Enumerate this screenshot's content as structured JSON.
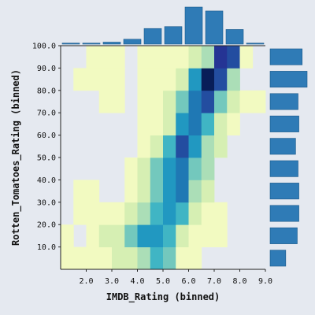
{
  "chart_data": {
    "type": "heatmap",
    "xlabel": "IMDB_Rating (binned)",
    "ylabel": "Rotten_Tomatoes_Rating (binned)",
    "x_bin_start": 1.0,
    "x_bin_width": 1.0,
    "y_bin_start": 0.0,
    "y_bin_width": 10.0,
    "xlim": [
      1.0,
      9.0
    ],
    "ylim": [
      0.0,
      100.0
    ],
    "x_ticks": [
      "2.0",
      "3.0",
      "4.0",
      "5.0",
      "6.0",
      "7.0",
      "8.0",
      "9.0"
    ],
    "y_ticks": [
      "10.0",
      "20.0",
      "30.0",
      "40.0",
      "50.0",
      "60.0",
      "70.0",
      "80.0",
      "90.0",
      "100.0"
    ],
    "x_bin_centers": [
      1.25,
      1.75,
      2.25,
      2.75,
      3.25,
      3.75,
      4.25,
      4.75,
      5.25,
      5.75,
      6.25,
      6.75,
      7.25,
      7.75,
      8.25,
      8.75
    ],
    "y_bin_centers": [
      5,
      15,
      25,
      35,
      45,
      55,
      65,
      75,
      85,
      95
    ],
    "intensity_scale": "0 = empty, 10 = darkest",
    "color_scale": [
      "#ffffd9",
      "#f2fac1",
      "#d6efb3",
      "#abdeb7",
      "#73c8bd",
      "#40b5c4",
      "#2198c1",
      "#1f78b4",
      "#234da0",
      "#253494",
      "#081d58"
    ],
    "matrix": [
      [
        1,
        1,
        1,
        1,
        2,
        2,
        3,
        5,
        4,
        1,
        1,
        0,
        0,
        0,
        0,
        0
      ],
      [
        1,
        0,
        1,
        2,
        2,
        4,
        6,
        6,
        5,
        2,
        1,
        1,
        1,
        0,
        0,
        0
      ],
      [
        0,
        1,
        1,
        1,
        1,
        2,
        3,
        5,
        6,
        5,
        2,
        1,
        1,
        0,
        0,
        0
      ],
      [
        0,
        1,
        1,
        0,
        0,
        1,
        2,
        4,
        6,
        7,
        3,
        2,
        0,
        0,
        0,
        0
      ],
      [
        0,
        0,
        0,
        0,
        0,
        1,
        2,
        4,
        6,
        7,
        4,
        3,
        0,
        0,
        0,
        0
      ],
      [
        0,
        0,
        0,
        0,
        0,
        0,
        1,
        2,
        5,
        8,
        6,
        3,
        2,
        0,
        0,
        0
      ],
      [
        0,
        0,
        0,
        0,
        0,
        0,
        1,
        1,
        2,
        6,
        7,
        5,
        2,
        1,
        0,
        0
      ],
      [
        0,
        0,
        0,
        1,
        1,
        0,
        1,
        1,
        2,
        4,
        7,
        8,
        4,
        2,
        1,
        1
      ],
      [
        0,
        1,
        1,
        1,
        1,
        0,
        1,
        1,
        1,
        2,
        6,
        10,
        8,
        3,
        0,
        0
      ],
      [
        0,
        0,
        1,
        1,
        1,
        0,
        1,
        1,
        1,
        1,
        2,
        3,
        9,
        8,
        1,
        0
      ]
    ],
    "top_marginal_x": {
      "type": "bar",
      "values": [
        1,
        1,
        2,
        5,
        16,
        18,
        38,
        34,
        15,
        1
      ]
    },
    "right_marginal_y": {
      "type": "bar",
      "values": [
        19,
        33,
        35,
        35,
        34,
        31,
        35,
        34,
        45,
        39
      ]
    },
    "grid": false
  }
}
